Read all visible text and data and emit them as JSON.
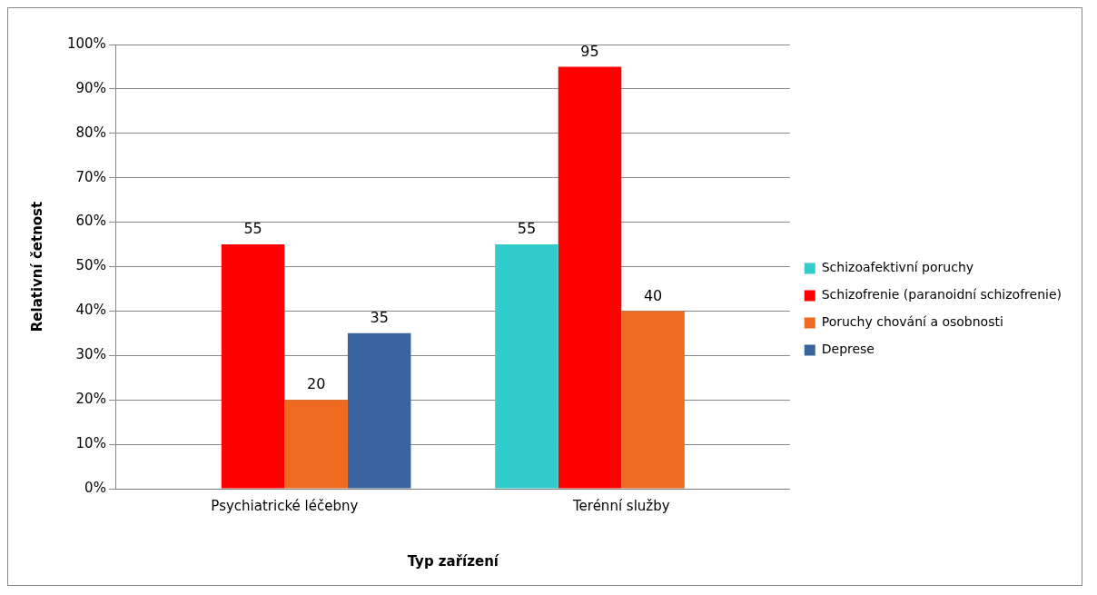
{
  "chart_data": {
    "type": "bar",
    "xlabel": "Typ zařízení",
    "ylabel": "Relativní četnost",
    "categories": [
      "Psychiatrické léčebny",
      "Terénní služby"
    ],
    "series": [
      {
        "name": "Schizoafektivní poruchy",
        "color": "#33cccc",
        "values": [
          null,
          55
        ]
      },
      {
        "name": "Schizofrenie (paranoidní schizofrenie)",
        "color": "#ff0000",
        "values": [
          55,
          95
        ]
      },
      {
        "name": "Poruchy chování a osobnosti",
        "color": "#ed6a1f",
        "values": [
          20,
          40
        ]
      },
      {
        "name": "Deprese",
        "color": "#3a64a0",
        "values": [
          35,
          null
        ]
      }
    ],
    "ylim": [
      0,
      100
    ],
    "yticks": [
      {
        "value": 0,
        "label": "0%"
      },
      {
        "value": 10,
        "label": "10%"
      },
      {
        "value": 20,
        "label": "20%"
      },
      {
        "value": 30,
        "label": "30%"
      },
      {
        "value": 40,
        "label": "40%"
      },
      {
        "value": 50,
        "label": "50%"
      },
      {
        "value": 60,
        "label": "60%"
      },
      {
        "value": 70,
        "label": "70%"
      },
      {
        "value": 80,
        "label": "80%"
      },
      {
        "value": 90,
        "label": "90%"
      },
      {
        "value": 100,
        "label": "100%"
      }
    ],
    "grid": "y",
    "legend": "right",
    "data_labels": true
  }
}
